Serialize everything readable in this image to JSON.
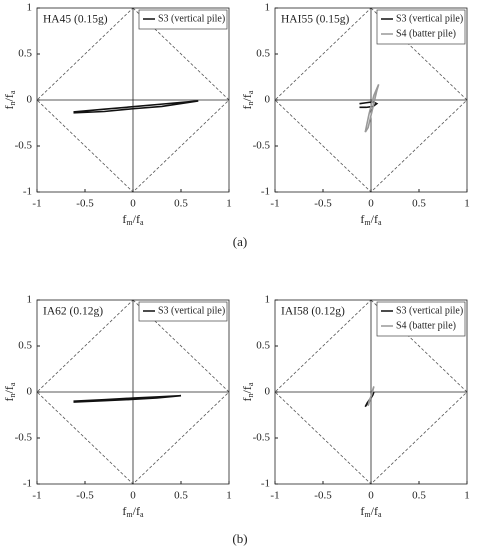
{
  "chart_data": [
    {
      "type": "line",
      "title": "HA45 (0.15g)",
      "x_label": [
        "f",
        "m",
        "/f",
        "a"
      ],
      "y_label": [
        "f",
        "n",
        "/f",
        "a"
      ],
      "xlim": [
        -1,
        1
      ],
      "ylim": [
        -1,
        1
      ],
      "xticks": [
        -1,
        -0.5,
        0,
        0.5,
        1
      ],
      "yticks": [
        -1,
        -0.5,
        0,
        0.5,
        1
      ],
      "series": [
        {
          "name": "S3 (vertical pile)",
          "color": "#111111",
          "x": [
            -0.62,
            -0.3,
            0,
            0.3,
            0.68,
            0.3,
            0,
            -0.3,
            -0.62
          ],
          "values": [
            -0.13,
            -0.1,
            -0.073,
            -0.045,
            -0.01,
            -0.07,
            -0.095,
            -0.125,
            -0.14
          ]
        }
      ]
    },
    {
      "type": "line",
      "title": "HAI55 (0.15g)",
      "x_label": [
        "f",
        "m",
        "/f",
        "a"
      ],
      "y_label": [
        "f",
        "n",
        "/f",
        "a"
      ],
      "xlim": [
        -1,
        1
      ],
      "ylim": [
        -1,
        1
      ],
      "xticks": [
        -1,
        -0.5,
        0,
        0.5,
        1
      ],
      "yticks": [
        -1,
        -0.5,
        0,
        0.5,
        1
      ],
      "series": [
        {
          "name": "S3 (vertical pile)",
          "color": "#111111",
          "x": [
            -0.12,
            -0.05,
            0.02,
            0.06,
            0.02,
            -0.05,
            -0.12
          ],
          "values": [
            -0.04,
            -0.03,
            -0.02,
            -0.04,
            -0.07,
            -0.08,
            -0.08
          ]
        },
        {
          "name": "S4 (batter pile)",
          "color": "#999999",
          "x": [
            -0.06,
            -0.02,
            0.03,
            0.08,
            0.06,
            0.02,
            -0.03,
            -0.06
          ],
          "values": [
            -0.35,
            -0.15,
            0.05,
            0.17,
            0.1,
            -0.08,
            -0.3,
            -0.35
          ]
        }
      ]
    },
    {
      "type": "line",
      "title": "IA62 (0.12g)",
      "x_label": [
        "f",
        "m",
        "/f",
        "a"
      ],
      "y_label": [
        "f",
        "n",
        "/f",
        "a"
      ],
      "xlim": [
        -1,
        1
      ],
      "ylim": [
        -1,
        1
      ],
      "xticks": [
        -1,
        -0.5,
        0,
        0.5,
        1
      ],
      "yticks": [
        -1,
        -0.5,
        0,
        0.5,
        1
      ],
      "series": [
        {
          "name": "S3 (vertical pile)",
          "color": "#111111",
          "x": [
            -0.62,
            -0.3,
            0,
            0.25,
            0.5,
            0.25,
            0,
            -0.3,
            -0.62
          ],
          "values": [
            -0.1,
            -0.083,
            -0.066,
            -0.053,
            -0.04,
            -0.065,
            -0.08,
            -0.095,
            -0.11
          ]
        }
      ]
    },
    {
      "type": "line",
      "title": "IAI58 (0.12g)",
      "x_label": [
        "f",
        "m",
        "/f",
        "a"
      ],
      "y_label": [
        "f",
        "n",
        "/f",
        "a"
      ],
      "xlim": [
        -1,
        1
      ],
      "ylim": [
        -1,
        1
      ],
      "xticks": [
        -1,
        -0.5,
        0,
        0.5,
        1
      ],
      "yticks": [
        -1,
        -0.5,
        0,
        0.5,
        1
      ],
      "series": [
        {
          "name": "S3 (vertical pile)",
          "color": "#111111",
          "x": [
            -0.06,
            -0.02,
            0.02,
            0.03,
            0,
            -0.04,
            -0.06
          ],
          "values": [
            -0.16,
            -0.1,
            -0.03,
            0,
            -0.06,
            -0.12,
            -0.16
          ]
        },
        {
          "name": "S4 (batter pile)",
          "color": "#999999",
          "x": [
            -0.03,
            0,
            0.02,
            0.03,
            0.01,
            -0.02,
            -0.03
          ],
          "values": [
            -0.15,
            -0.05,
            0.03,
            0.06,
            -0.02,
            -0.1,
            -0.15
          ]
        }
      ]
    }
  ],
  "captions": [
    "(a)",
    "(b)"
  ]
}
